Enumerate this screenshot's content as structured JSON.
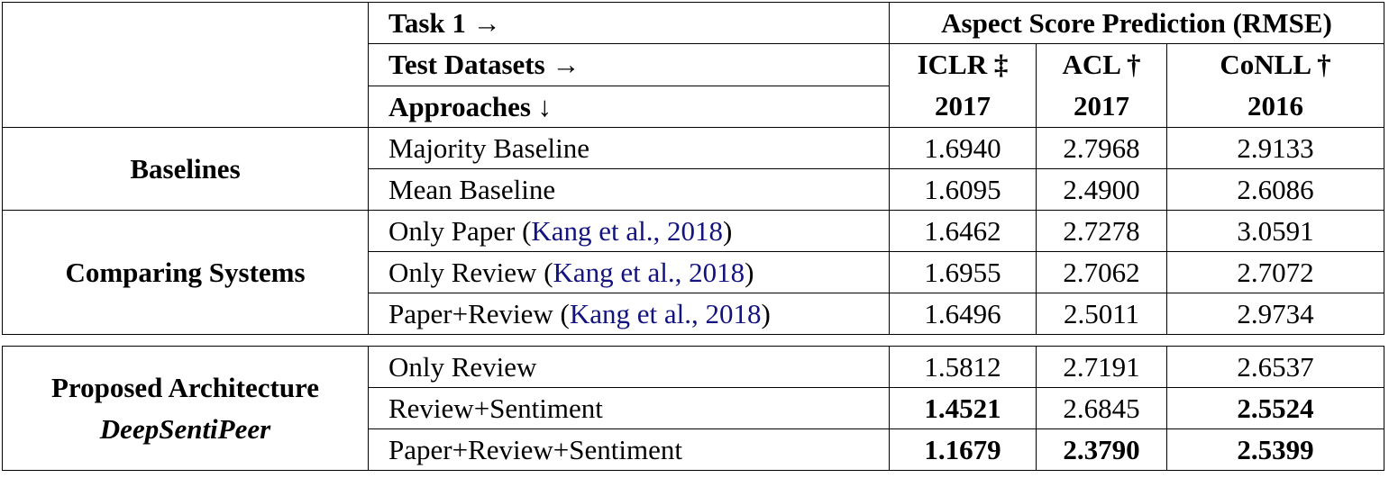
{
  "header": {
    "task": "Task 1 →",
    "task_title": "Aspect Score Prediction (RMSE)",
    "test_datasets": "Test Datasets →",
    "approaches": "Approaches ↓",
    "col1": {
      "name": "ICLR ‡",
      "year": "2017"
    },
    "col2": {
      "name": "ACL †",
      "year": "2017"
    },
    "col3": {
      "name": "CoNLL †",
      "year": "2016"
    }
  },
  "groups": {
    "baselines": "Baselines",
    "comparing": "Comparing Systems",
    "proposed": "Proposed Architecture",
    "proposed_name": "DeepSentiPeer"
  },
  "rows": [
    {
      "approach": "Majority Baseline",
      "v1": "1.6940",
      "v2": "2.7968",
      "v3": "2.9133"
    },
    {
      "approach": "Mean Baseline",
      "v1": "1.6095",
      "v2": "2.4900",
      "v3": "2.6086"
    },
    {
      "approach": "Only Paper (",
      "cite": "Kang et al., 2018",
      "close": ")",
      "v1": "1.6462",
      "v2": "2.7278",
      "v3": "3.0591"
    },
    {
      "approach": "Only Review (",
      "cite": "Kang et al., 2018",
      "close": ")",
      "v1": "1.6955",
      "v2": "2.7062",
      "v3": "2.7072"
    },
    {
      "approach": "Paper+Review (",
      "cite": "Kang et al., 2018",
      "close": ")",
      "v1": "1.6496",
      "v2": "2.5011",
      "v3": "2.9734"
    },
    {
      "approach": "Only Review",
      "v1": "1.5812",
      "v2": "2.7191",
      "v3": "2.6537"
    },
    {
      "approach": "Review+Sentiment",
      "v1": "1.4521",
      "v2": "2.6845",
      "v3": "2.5524"
    },
    {
      "approach": "Paper+Review+Sentiment",
      "v1": "1.1679",
      "v2": "2.3790",
      "v3": "2.5399"
    }
  ]
}
